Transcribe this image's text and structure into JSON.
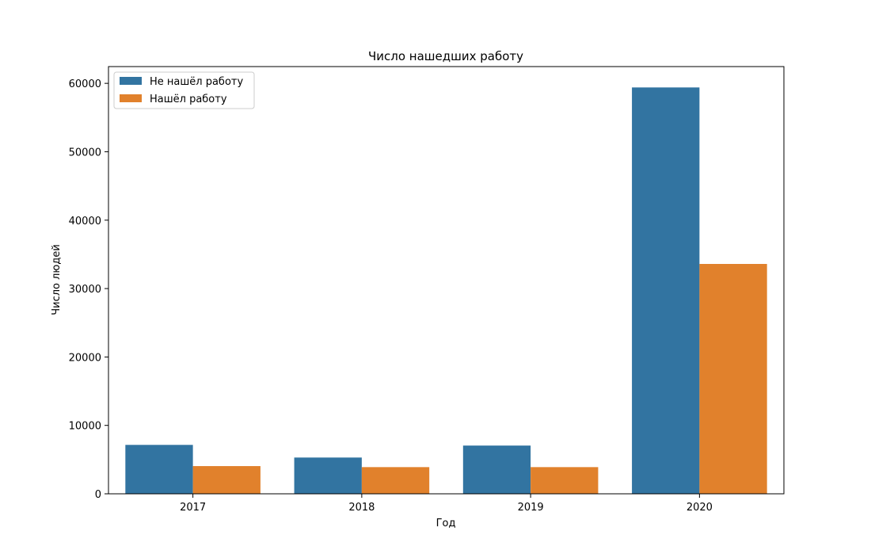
{
  "chart_data": {
    "type": "bar",
    "title": "Число нашедших работу",
    "xlabel": "Год",
    "ylabel": "Число людей",
    "categories": [
      "2017",
      "2018",
      "2019",
      "2020"
    ],
    "series": [
      {
        "name": "Не нашёл работу",
        "color": "#3274a1",
        "values": [
          7150,
          5300,
          7050,
          59400
        ]
      },
      {
        "name": "Нашёл работу",
        "color": "#e1812c",
        "values": [
          4050,
          3900,
          3900,
          33600
        ]
      }
    ],
    "ylim": [
      0,
      62450
    ],
    "yticks": [
      0,
      10000,
      20000,
      30000,
      40000,
      50000,
      60000
    ],
    "ytick_labels": [
      "0",
      "10000",
      "20000",
      "30000",
      "40000",
      "50000",
      "60000"
    ],
    "grid": false,
    "legend": "top-left"
  }
}
